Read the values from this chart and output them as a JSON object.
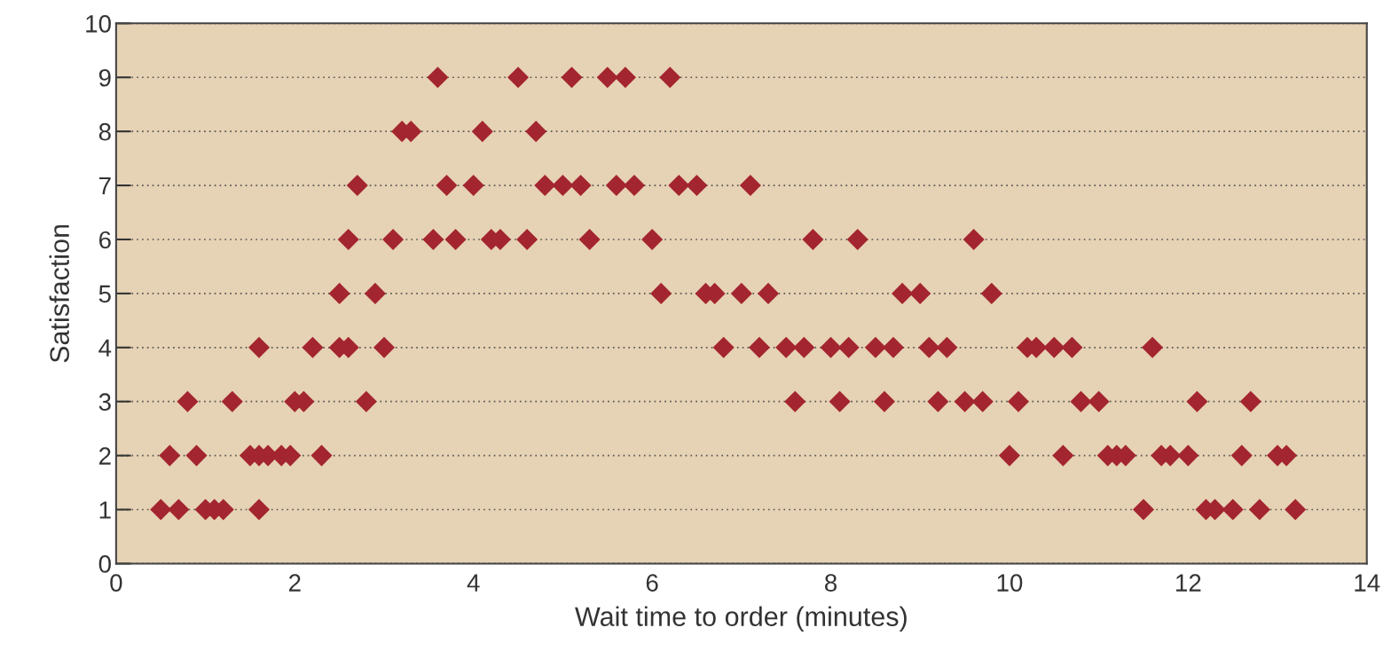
{
  "chart_data": {
    "type": "scatter",
    "xlabel": "Wait time to order (minutes)",
    "ylabel": "Satisfaction",
    "xlim": [
      0,
      14
    ],
    "xticks": [
      0,
      2,
      4,
      6,
      8,
      10,
      12,
      14
    ],
    "ylim": [
      0,
      10
    ],
    "yticks": [
      0,
      1,
      2,
      3,
      4,
      5,
      6,
      7,
      8,
      9,
      10
    ],
    "grid": "y",
    "marker": "diamond",
    "series": [
      {
        "color": "#a3252f",
        "x": [
          3.6,
          4.5,
          5.1,
          5.5,
          5.7,
          6.2,
          3.2,
          3.3,
          4.1,
          4.7,
          2.7,
          3.7,
          4.0,
          4.8,
          5.0,
          5.2,
          5.6,
          5.8,
          6.3,
          6.5,
          7.1,
          2.6,
          3.1,
          3.55,
          3.8,
          4.2,
          4.3,
          4.6,
          5.3,
          6.0,
          7.8,
          8.3,
          9.6,
          2.5,
          2.9,
          6.1,
          6.6,
          6.7,
          7.0,
          7.3,
          8.8,
          9.0,
          9.8,
          1.6,
          2.2,
          2.5,
          2.6,
          3.0,
          6.8,
          7.2,
          7.5,
          7.7,
          8.0,
          8.2,
          8.5,
          8.7,
          9.1,
          9.3,
          10.2,
          10.3,
          10.5,
          10.7,
          11.6,
          0.8,
          1.3,
          2.0,
          2.1,
          2.8,
          7.6,
          8.1,
          8.6,
          9.2,
          9.5,
          9.7,
          10.1,
          10.8,
          11.0,
          12.1,
          12.7,
          0.6,
          0.9,
          1.5,
          1.6,
          1.7,
          1.85,
          1.95,
          2.3,
          10.0,
          10.6,
          11.1,
          11.2,
          11.3,
          11.7,
          11.8,
          12.0,
          12.6,
          13.0,
          13.1,
          0.5,
          0.7,
          1.0,
          1.1,
          1.2,
          1.6,
          11.5,
          12.2,
          12.3,
          12.5,
          12.8,
          13.2
        ],
        "values": [
          9,
          9,
          9,
          9,
          9,
          9,
          8,
          8,
          8,
          8,
          7,
          7,
          7,
          7,
          7,
          7,
          7,
          7,
          7,
          7,
          7,
          6,
          6,
          6,
          6,
          6,
          6,
          6,
          6,
          6,
          6,
          6,
          6,
          5,
          5,
          5,
          5,
          5,
          5,
          5,
          5,
          5,
          5,
          4,
          4,
          4,
          4,
          4,
          4,
          4,
          4,
          4,
          4,
          4,
          4,
          4,
          4,
          4,
          4,
          4,
          4,
          4,
          4,
          3,
          3,
          3,
          3,
          3,
          3,
          3,
          3,
          3,
          3,
          3,
          3,
          3,
          3,
          3,
          3,
          2,
          2,
          2,
          2,
          2,
          2,
          2,
          2,
          2,
          2,
          2,
          2,
          2,
          2,
          2,
          2,
          2,
          2,
          2,
          1,
          1,
          1,
          1,
          1,
          1,
          1,
          1,
          1,
          1,
          1,
          1
        ]
      }
    ]
  }
}
